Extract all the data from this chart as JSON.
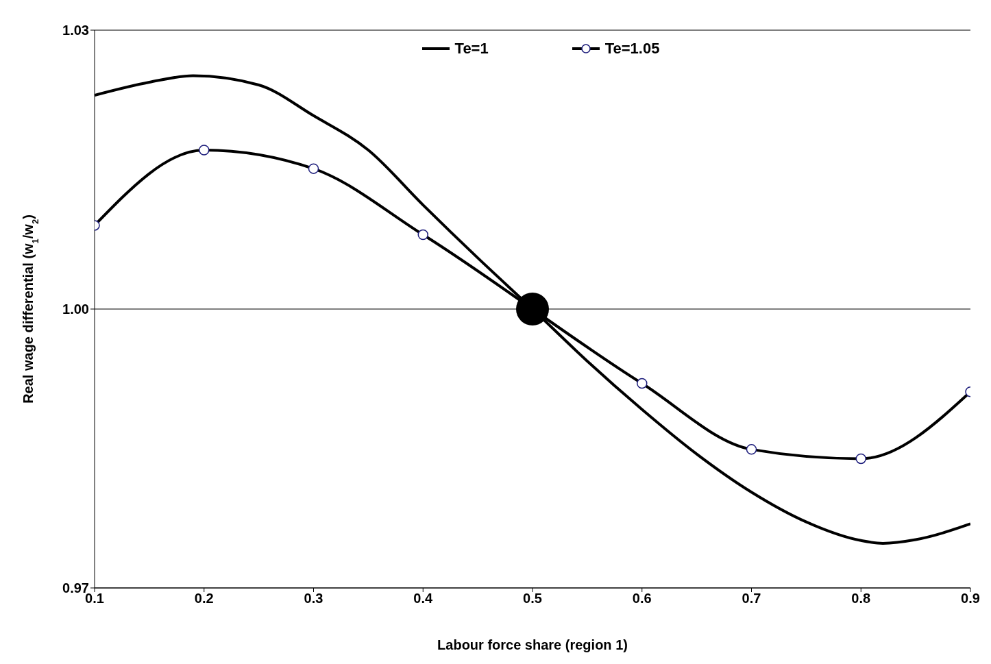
{
  "chart_data": {
    "type": "line",
    "xlabel": "Labour force share (region 1)",
    "ylabel": "Real wage differential (w$_{1}$/w$_{2}$)",
    "xlim": [
      0.1,
      0.9
    ],
    "xticks": [
      0.1,
      0.2,
      0.3,
      0.4,
      0.5,
      0.6,
      0.7,
      0.8,
      0.9
    ],
    "ylim": [
      0.97,
      1.03
    ],
    "yticks": [
      {
        "value": 0.97,
        "label": "0.97"
      },
      {
        "value": 1.0,
        "label": "1.00"
      },
      {
        "value": 1.03,
        "label": "1.03"
      }
    ],
    "grid": "y",
    "legend": "top",
    "line_style": "solid",
    "series": [
      {
        "name": "Te=1",
        "color": "#000000",
        "marker": "none",
        "x": [
          0.1,
          0.15,
          0.19,
          0.25,
          0.3,
          0.35,
          0.4,
          0.45,
          0.5,
          0.55,
          0.6,
          0.65,
          0.7,
          0.75,
          0.8,
          0.82,
          0.85,
          0.9
        ],
        "values": [
          1.023,
          1.0244,
          1.0251,
          1.0241,
          1.0208,
          1.0171,
          1.0112,
          1.0055,
          1.0,
          0.9944,
          0.9892,
          0.9844,
          0.9803,
          0.9771,
          0.9751,
          0.9748,
          0.9752,
          0.9769
        ]
      },
      {
        "name": "Te=1.05",
        "color": "#000000",
        "marker": "circle",
        "x": [
          0.1,
          0.2,
          0.3,
          0.4,
          0.5,
          0.6,
          0.7,
          0.8,
          0.9
        ],
        "values": [
          1.009,
          1.0171,
          1.0151,
          1.008,
          null,
          0.992,
          0.9849,
          0.9839,
          0.9911
        ]
      },
      {
        "type": "scatter",
        "color": "#000000",
        "x": [
          0.5
        ],
        "values": [
          1.0
        ]
      }
    ]
  }
}
